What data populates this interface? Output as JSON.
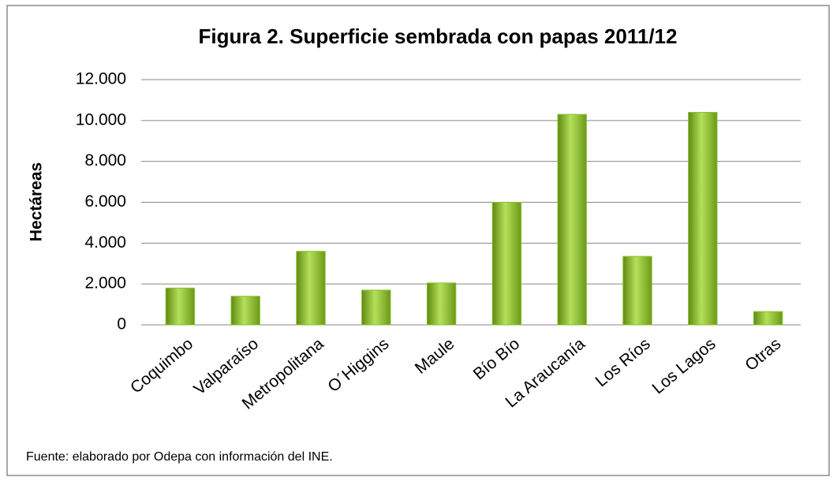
{
  "chart_data": {
    "type": "bar",
    "title": "Figura 2. Superficie sembrada con papas 2011/12",
    "ylabel": "Hectáreas",
    "source": "Fuente: elaborado por Odepa con información del INE.",
    "categories": [
      "Coquimbo",
      "Valparaíso",
      "Metropolitana",
      "O´Higgins",
      "Maule",
      "Bío Bío",
      "La Araucanía",
      "Los Ríos",
      "Los Lagos",
      "Otras"
    ],
    "values": [
      1800,
      1400,
      3600,
      1700,
      2050,
      6000,
      10300,
      3350,
      10400,
      650
    ],
    "color": "#8cbf2c",
    "ylim": [
      0,
      12000
    ],
    "yticks": [
      0,
      {
        "value": 2000,
        "label": "2.000"
      },
      {
        "value": 4000,
        "label": "4.000"
      },
      {
        "value": 6000,
        "label": "6.000"
      },
      {
        "value": 8000,
        "label": "8.000"
      },
      {
        "value": 10000,
        "label": "10.000"
      },
      {
        "value": 12000,
        "label": "12.000"
      }
    ],
    "grid": true
  }
}
